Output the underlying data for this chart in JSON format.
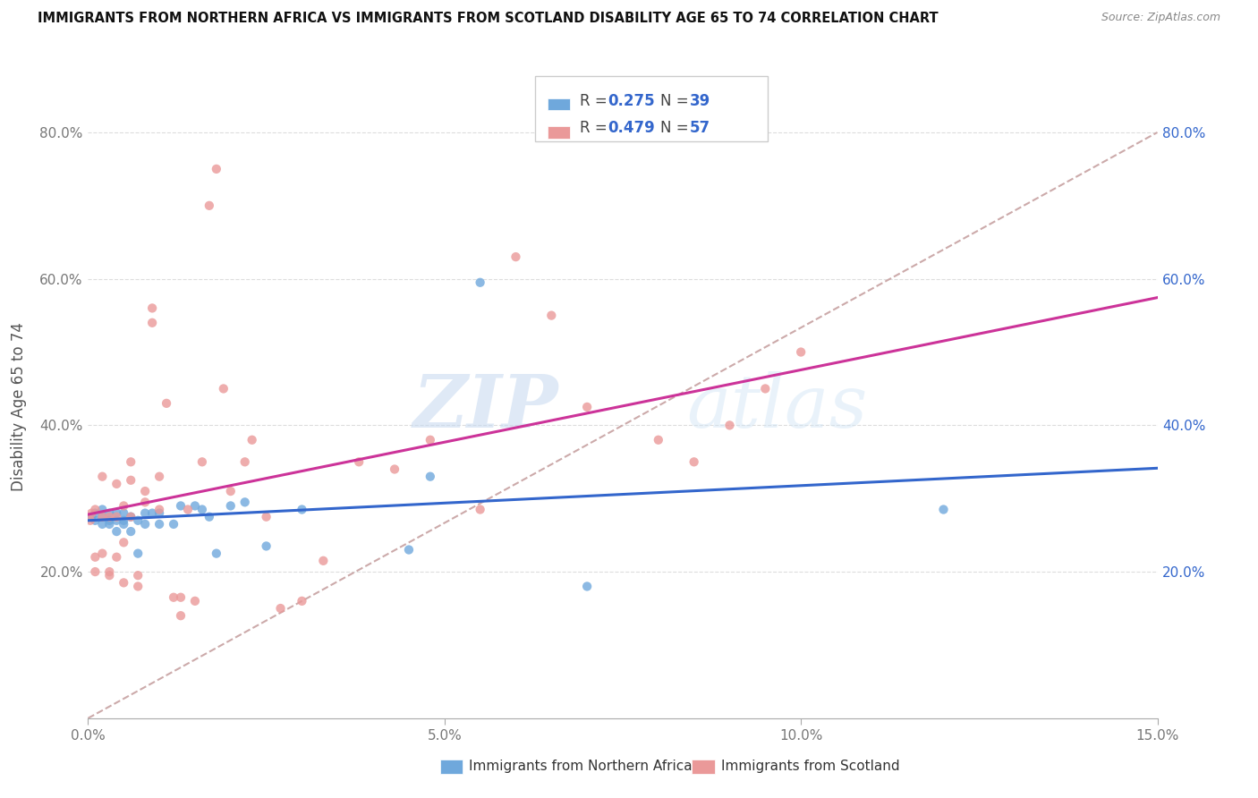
{
  "title": "IMMIGRANTS FROM NORTHERN AFRICA VS IMMIGRANTS FROM SCOTLAND DISABILITY AGE 65 TO 74 CORRELATION CHART",
  "source": "Source: ZipAtlas.com",
  "ylabel": "Disability Age 65 to 74",
  "x_min": 0.0,
  "x_max": 0.15,
  "y_min": 0.0,
  "y_max": 0.85,
  "x_ticks": [
    0.0,
    0.05,
    0.1,
    0.15
  ],
  "x_tick_labels": [
    "0.0%",
    "5.0%",
    "10.0%",
    "15.0%"
  ],
  "y_ticks": [
    0.0,
    0.2,
    0.4,
    0.6,
    0.8
  ],
  "y_tick_labels": [
    "",
    "20.0%",
    "40.0%",
    "60.0%",
    "80.0%"
  ],
  "color_blue": "#6fa8dc",
  "color_pink": "#ea9999",
  "color_line_blue": "#3366cc",
  "color_line_pink": "#cc3399",
  "color_diag": "#ccaaaa",
  "watermark_zip": "ZIP",
  "watermark_atlas": "atlas",
  "legend_label_blue": "Immigrants from Northern Africa",
  "legend_label_pink": "Immigrants from Scotland",
  "blue_scatter_x": [
    0.0005,
    0.001,
    0.001,
    0.002,
    0.002,
    0.002,
    0.003,
    0.003,
    0.003,
    0.004,
    0.004,
    0.004,
    0.005,
    0.005,
    0.005,
    0.006,
    0.006,
    0.007,
    0.007,
    0.008,
    0.008,
    0.009,
    0.01,
    0.01,
    0.012,
    0.013,
    0.015,
    0.016,
    0.017,
    0.018,
    0.02,
    0.022,
    0.025,
    0.03,
    0.045,
    0.048,
    0.055,
    0.07,
    0.12
  ],
  "blue_scatter_y": [
    0.275,
    0.28,
    0.27,
    0.285,
    0.265,
    0.275,
    0.27,
    0.28,
    0.265,
    0.255,
    0.27,
    0.28,
    0.265,
    0.27,
    0.28,
    0.255,
    0.275,
    0.225,
    0.27,
    0.265,
    0.28,
    0.28,
    0.28,
    0.265,
    0.265,
    0.29,
    0.29,
    0.285,
    0.275,
    0.225,
    0.29,
    0.295,
    0.235,
    0.285,
    0.23,
    0.33,
    0.595,
    0.18,
    0.285
  ],
  "pink_scatter_x": [
    0.0003,
    0.0005,
    0.001,
    0.001,
    0.001,
    0.002,
    0.002,
    0.002,
    0.003,
    0.003,
    0.003,
    0.004,
    0.004,
    0.004,
    0.005,
    0.005,
    0.005,
    0.006,
    0.006,
    0.006,
    0.007,
    0.007,
    0.008,
    0.008,
    0.009,
    0.009,
    0.01,
    0.01,
    0.011,
    0.012,
    0.013,
    0.013,
    0.014,
    0.015,
    0.016,
    0.017,
    0.018,
    0.019,
    0.02,
    0.022,
    0.023,
    0.025,
    0.027,
    0.03,
    0.033,
    0.038,
    0.043,
    0.048,
    0.055,
    0.06,
    0.065,
    0.07,
    0.08,
    0.085,
    0.09,
    0.095,
    0.1
  ],
  "pink_scatter_y": [
    0.27,
    0.28,
    0.2,
    0.22,
    0.285,
    0.275,
    0.225,
    0.33,
    0.195,
    0.275,
    0.2,
    0.22,
    0.275,
    0.32,
    0.185,
    0.24,
    0.29,
    0.325,
    0.275,
    0.35,
    0.195,
    0.18,
    0.295,
    0.31,
    0.54,
    0.56,
    0.285,
    0.33,
    0.43,
    0.165,
    0.14,
    0.165,
    0.285,
    0.16,
    0.35,
    0.7,
    0.75,
    0.45,
    0.31,
    0.35,
    0.38,
    0.275,
    0.15,
    0.16,
    0.215,
    0.35,
    0.34,
    0.38,
    0.285,
    0.63,
    0.55,
    0.425,
    0.38,
    0.35,
    0.4,
    0.45,
    0.5
  ]
}
